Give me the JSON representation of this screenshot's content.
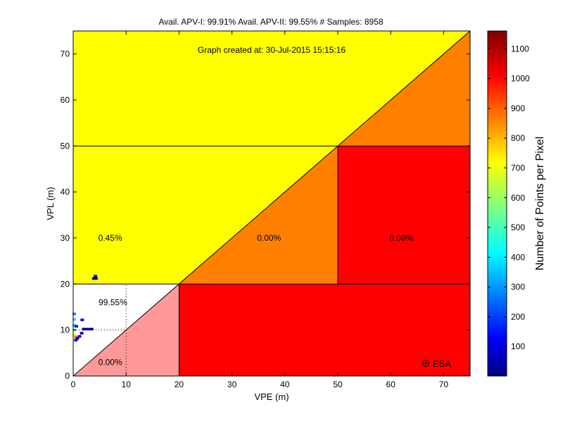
{
  "chart_data": {
    "type": "heatmap",
    "title": "Avail. APV-I: 99.91%  Avail. APV-II: 99.55%  # Samples: 8958",
    "annotation": "Graph created at: 30-Jul-2015 15:15:16",
    "xlabel": "VPE (m)",
    "ylabel": "VPL (m)",
    "xlim": [
      0,
      75
    ],
    "ylim": [
      0,
      75
    ],
    "x_ticks": [
      0,
      10,
      20,
      30,
      40,
      50,
      60,
      70
    ],
    "y_ticks": [
      0,
      10,
      20,
      30,
      40,
      50,
      60,
      70
    ],
    "colorbar": {
      "label": "Number of Points per Pixel",
      "range": [
        1,
        1160
      ],
      "ticks": [
        100,
        200,
        300,
        400,
        500,
        600,
        700,
        800,
        900,
        1000,
        1100
      ]
    },
    "regions": [
      {
        "polygon": [
          [
            0,
            50
          ],
          [
            50,
            50
          ],
          [
            75,
            75
          ],
          [
            0,
            75
          ]
        ],
        "color": "#ffff00"
      },
      {
        "polygon": [
          [
            0,
            20
          ],
          [
            20,
            20
          ],
          [
            50,
            50
          ],
          [
            0,
            50
          ]
        ],
        "color": "#ffff00"
      },
      {
        "polygon": [
          [
            20,
            20
          ],
          [
            50,
            50
          ],
          [
            50,
            20
          ]
        ],
        "color": "#ff8000"
      },
      {
        "polygon": [
          [
            50,
            50
          ],
          [
            75,
            50
          ],
          [
            75,
            75
          ]
        ],
        "color": "#ff8000"
      },
      {
        "polygon": [
          [
            50,
            20
          ],
          [
            75,
            20
          ],
          [
            75,
            50
          ],
          [
            50,
            50
          ]
        ],
        "color": "#ff0000"
      },
      {
        "polygon": [
          [
            20,
            0
          ],
          [
            75,
            0
          ],
          [
            75,
            20
          ],
          [
            20,
            20
          ]
        ],
        "color": "#ff0000"
      },
      {
        "polygon": [
          [
            0,
            0
          ],
          [
            20,
            0
          ],
          [
            20,
            20
          ]
        ],
        "color": "#ff9999"
      }
    ],
    "boundary_lines": [
      [
        [
          0,
          50
        ],
        [
          50,
          50
        ]
      ],
      [
        [
          0,
          20
        ],
        [
          75,
          20
        ]
      ],
      [
        [
          50,
          20
        ],
        [
          50,
          50
        ]
      ],
      [
        [
          20,
          0
        ],
        [
          20,
          20
        ]
      ],
      [
        [
          50,
          50
        ],
        [
          75,
          50
        ]
      ],
      [
        [
          0,
          0
        ],
        [
          75,
          75
        ]
      ]
    ],
    "dotted_lines": [
      [
        [
          10,
          0
        ],
        [
          10,
          20
        ]
      ],
      [
        [
          0,
          10
        ],
        [
          10,
          10
        ]
      ]
    ],
    "region_labels": [
      {
        "x": 7,
        "y": 30,
        "text": "0.45%"
      },
      {
        "x": 37,
        "y": 30,
        "text": "0.00%"
      },
      {
        "x": 62,
        "y": 30,
        "text": "0.00%"
      },
      {
        "x": 7.5,
        "y": 16,
        "text": "99.55%"
      },
      {
        "x": 7,
        "y": 3,
        "text": "0.00%"
      }
    ],
    "points": [
      {
        "x": 0.2,
        "y": 13.5,
        "color": "#2080ff"
      },
      {
        "x": 0.2,
        "y": 12.3,
        "color": "#60c0ff"
      },
      {
        "x": 0.2,
        "y": 11,
        "color": "#00c8ff"
      },
      {
        "x": 0.2,
        "y": 10,
        "color": "#40ff80"
      },
      {
        "x": 0.2,
        "y": 9,
        "color": "#ffff00"
      },
      {
        "x": 0.5,
        "y": 8.5,
        "color": "#ff8000"
      },
      {
        "x": 0.8,
        "y": 8.2,
        "color": "#00007f"
      },
      {
        "x": 0.5,
        "y": 7.8,
        "color": "#0000c0"
      },
      {
        "x": 1.2,
        "y": 8.6,
        "color": "#0000ff"
      },
      {
        "x": 1.6,
        "y": 9.3,
        "color": "#000090"
      },
      {
        "x": 2.0,
        "y": 10.2,
        "color": "#0000a0"
      },
      {
        "x": 2.5,
        "y": 10.2,
        "color": "#00008f"
      },
      {
        "x": 3.0,
        "y": 10.2,
        "color": "#0000b0"
      },
      {
        "x": 3.5,
        "y": 10.2,
        "color": "#00009f"
      },
      {
        "x": 1.7,
        "y": 12.2,
        "color": "#0000ff"
      },
      {
        "x": 0.6,
        "y": 10.8,
        "color": "#0000ff"
      },
      {
        "x": 3.9,
        "y": 21.2,
        "color": "#00007f"
      },
      {
        "x": 4.3,
        "y": 21.2,
        "color": "#00007f"
      },
      {
        "x": 4.2,
        "y": 21.7,
        "color": "#0000ff"
      }
    ],
    "grid": false,
    "watermark": "ESA"
  }
}
